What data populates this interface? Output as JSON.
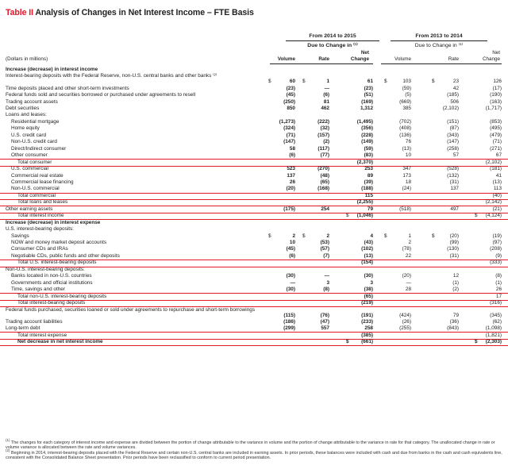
{
  "title": {
    "table_no": "Table II",
    "text": "Analysis of Changes in Net Interest Income – FTE Basis"
  },
  "groups": [
    {
      "head": "From 2014 to 2015",
      "sub": "Due to Change in ⁽¹⁾"
    },
    {
      "head": "From 2013 to 2014",
      "sub": "Due to Change in ⁽¹⁾"
    }
  ],
  "col_headers": {
    "units": "(Dollars in millions)",
    "volume": "Volume",
    "rate": "Rate",
    "net1": "Net",
    "net2": "Change"
  },
  "rows": [
    {
      "label": "Increase (decrease) in interest income",
      "bold": true,
      "indent": 0,
      "v": [
        "",
        "",
        "",
        "",
        "",
        ""
      ]
    },
    {
      "label": "Interest-bearing deposits with the Federal Reserve, non-U.S. central banks and other banks ⁽²⁾",
      "indent": 0,
      "wrap": true,
      "dollar": true,
      "v": [
        "60",
        "1",
        "61",
        "103",
        "23",
        "126"
      ]
    },
    {
      "label": "Time deposits placed and other short-term investments",
      "indent": 0,
      "v": [
        "(23)",
        "—",
        "(23)",
        "(59)",
        "42",
        "(17)"
      ]
    },
    {
      "label": "Federal funds sold and securities borrowed or purchased under agreements to resell",
      "indent": 0,
      "v": [
        "(45)",
        "(6)",
        "(51)",
        "(5)",
        "(185)",
        "(190)"
      ]
    },
    {
      "label": "Trading account assets",
      "indent": 0,
      "v": [
        "(250)",
        "81",
        "(169)",
        "(669)",
        "506",
        "(163)"
      ]
    },
    {
      "label": "Debt securities",
      "indent": 0,
      "v": [
        "850",
        "462",
        "1,312",
        "385",
        "(2,102)",
        "(1,717)"
      ]
    },
    {
      "label": "Loans and leases:",
      "indent": 0,
      "v": [
        "",
        "",
        "",
        "",
        "",
        ""
      ]
    },
    {
      "label": "Residential mortgage",
      "indent": 1,
      "v": [
        "(1,273)",
        "(222)",
        "(1,495)",
        "(702)",
        "(151)",
        "(853)"
      ]
    },
    {
      "label": "Home equity",
      "indent": 1,
      "v": [
        "(324)",
        "(32)",
        "(356)",
        "(408)",
        "(87)",
        "(495)"
      ]
    },
    {
      "label": "U.S. credit card",
      "indent": 1,
      "v": [
        "(71)",
        "(157)",
        "(228)",
        "(136)",
        "(343)",
        "(479)"
      ]
    },
    {
      "label": "Non-U.S. credit card",
      "indent": 1,
      "v": [
        "(147)",
        "(2)",
        "(149)",
        "76",
        "(147)",
        "(71)"
      ]
    },
    {
      "label": "Direct/Indirect consumer",
      "indent": 1,
      "v": [
        "58",
        "(117)",
        "(59)",
        "(13)",
        "(258)",
        "(271)"
      ]
    },
    {
      "label": "Other consumer",
      "indent": 1,
      "ul": true,
      "v": [
        "(6)",
        "(77)",
        "(83)",
        "10",
        "57",
        "67"
      ]
    },
    {
      "label": "Total consumer",
      "indent": 2,
      "ul": true,
      "v": [
        "",
        "",
        "(2,370)",
        "",
        "",
        "(2,102)"
      ]
    },
    {
      "label": "U.S. commercial",
      "indent": 1,
      "v": [
        "523",
        "(270)",
        "253",
        "347",
        "(528)",
        "(181)"
      ]
    },
    {
      "label": "Commercial real estate",
      "indent": 1,
      "v": [
        "137",
        "(48)",
        "89",
        "173",
        "(132)",
        "41"
      ]
    },
    {
      "label": "Commercial lease financing",
      "indent": 1,
      "v": [
        "26",
        "(65)",
        "(39)",
        "18",
        "(31)",
        "(13)"
      ]
    },
    {
      "label": "Non-U.S. commercial",
      "indent": 1,
      "ul": true,
      "v": [
        "(20)",
        "(168)",
        "(188)",
        "(24)",
        "137",
        "113"
      ]
    },
    {
      "label": "Total commercial",
      "indent": 2,
      "ul": true,
      "v": [
        "",
        "",
        "115",
        "",
        "",
        "(40)"
      ]
    },
    {
      "label": "Total loans and leases",
      "indent": 2,
      "ul": true,
      "v": [
        "",
        "",
        "(2,255)",
        "",
        "",
        "(2,142)"
      ]
    },
    {
      "label": "Other earning assets",
      "indent": 0,
      "ul": true,
      "v": [
        "(175)",
        "254",
        "79",
        "(518)",
        "497",
        "(21)"
      ]
    },
    {
      "label": "Total interest income",
      "indent": 2,
      "ul": true,
      "totalDollar": true,
      "v": [
        "",
        "",
        "(1,046)",
        "",
        "",
        "(4,124)"
      ]
    },
    {
      "label": "Increase (decrease) in interest expense",
      "bold": true,
      "indent": 0,
      "v": [
        "",
        "",
        "",
        "",
        "",
        ""
      ]
    },
    {
      "label": "U.S. interest-bearing deposits:",
      "indent": 0,
      "v": [
        "",
        "",
        "",
        "",
        "",
        ""
      ]
    },
    {
      "label": "Savings",
      "indent": 1,
      "dollar": true,
      "v": [
        "2",
        "2",
        "4",
        "1",
        "(20)",
        "(19)"
      ]
    },
    {
      "label": "NOW and money market deposit accounts",
      "indent": 1,
      "v": [
        "10",
        "(53)",
        "(43)",
        "2",
        "(99)",
        "(97)"
      ]
    },
    {
      "label": "Consumer CDs and IRAs",
      "indent": 1,
      "v": [
        "(45)",
        "(57)",
        "(102)",
        "(78)",
        "(130)",
        "(208)"
      ]
    },
    {
      "label": "Negotiable CDs, public funds and other deposits",
      "indent": 1,
      "ul": true,
      "v": [
        "(6)",
        "(7)",
        "(13)",
        "22",
        "(31)",
        "(9)"
      ]
    },
    {
      "label": "Total U.S. interest-bearing deposits",
      "indent": 2,
      "ul": true,
      "v": [
        "",
        "",
        "(154)",
        "",
        "",
        "(333)"
      ]
    },
    {
      "label": "Non-U.S. interest-bearing deposits:",
      "indent": 0,
      "v": [
        "",
        "",
        "",
        "",
        "",
        ""
      ]
    },
    {
      "label": "Banks located in non-U.S. countries",
      "indent": 1,
      "v": [
        "(30)",
        "—",
        "(30)",
        "(20)",
        "12",
        "(8)"
      ]
    },
    {
      "label": "Governments and official institutions",
      "indent": 1,
      "v": [
        "—",
        "3",
        "3",
        "—",
        "(1)",
        "(1)"
      ]
    },
    {
      "label": "Time, savings and other",
      "indent": 1,
      "ul": true,
      "v": [
        "(30)",
        "(8)",
        "(38)",
        "28",
        "(2)",
        "26"
      ]
    },
    {
      "label": "Total non-U.S. interest-bearing deposits",
      "indent": 2,
      "ul": true,
      "v": [
        "",
        "",
        "(65)",
        "",
        "",
        "17"
      ]
    },
    {
      "label": "Total interest-bearing deposits",
      "indent": 2,
      "ul": true,
      "v": [
        "",
        "",
        "(219)",
        "",
        "",
        "(316)"
      ]
    },
    {
      "label": "Federal funds purchased, securities loaned or sold under agreements to repurchase and short-term borrowings",
      "indent": 0,
      "wrap": true,
      "v": [
        "(115)",
        "(76)",
        "(191)",
        "(424)",
        "79",
        "(345)"
      ]
    },
    {
      "label": "Trading account liabilities",
      "indent": 0,
      "v": [
        "(186)",
        "(47)",
        "(233)",
        "(26)",
        "(36)",
        "(62)"
      ]
    },
    {
      "label": "Long-term debt",
      "indent": 0,
      "ul": true,
      "v": [
        "(299)",
        "557",
        "258",
        "(255)",
        "(843)",
        "(1,098)"
      ]
    },
    {
      "label": "Total interest expense",
      "indent": 2,
      "ul": true,
      "v": [
        "",
        "",
        "(385)",
        "",
        "",
        "(1,821)"
      ]
    },
    {
      "label": "Net decrease in net interest income",
      "bold": true,
      "indent": 2,
      "ul": true,
      "totalDollar": true,
      "v": [
        "",
        "",
        "(661)",
        "",
        "",
        "(2,303)"
      ]
    }
  ],
  "footnotes": [
    {
      "mark": "(1)",
      "text": "The changes for each category of interest income and expense are divided between the portion of change attributable to the variance in volume and the portion of change attributable to the variance in rate for that category. The unallocated change in rate or volume variance is allocated between the rate and volume variances."
    },
    {
      "mark": "(2)",
      "text": "Beginning in 2014, interest-bearing deposits placed with the Federal Reserve and certain non-U.S. central banks are included in earning assets. In prior periods, these balances were included with cash and due from banks in the cash and cash equivalents line, consistent with the Consolidated Balance Sheet presentation. Prior periods have been reclassified to conform to current period presentation."
    }
  ],
  "dollar_sign": "$",
  "colors": {
    "accent": "#e4182a",
    "text": "#222222"
  }
}
